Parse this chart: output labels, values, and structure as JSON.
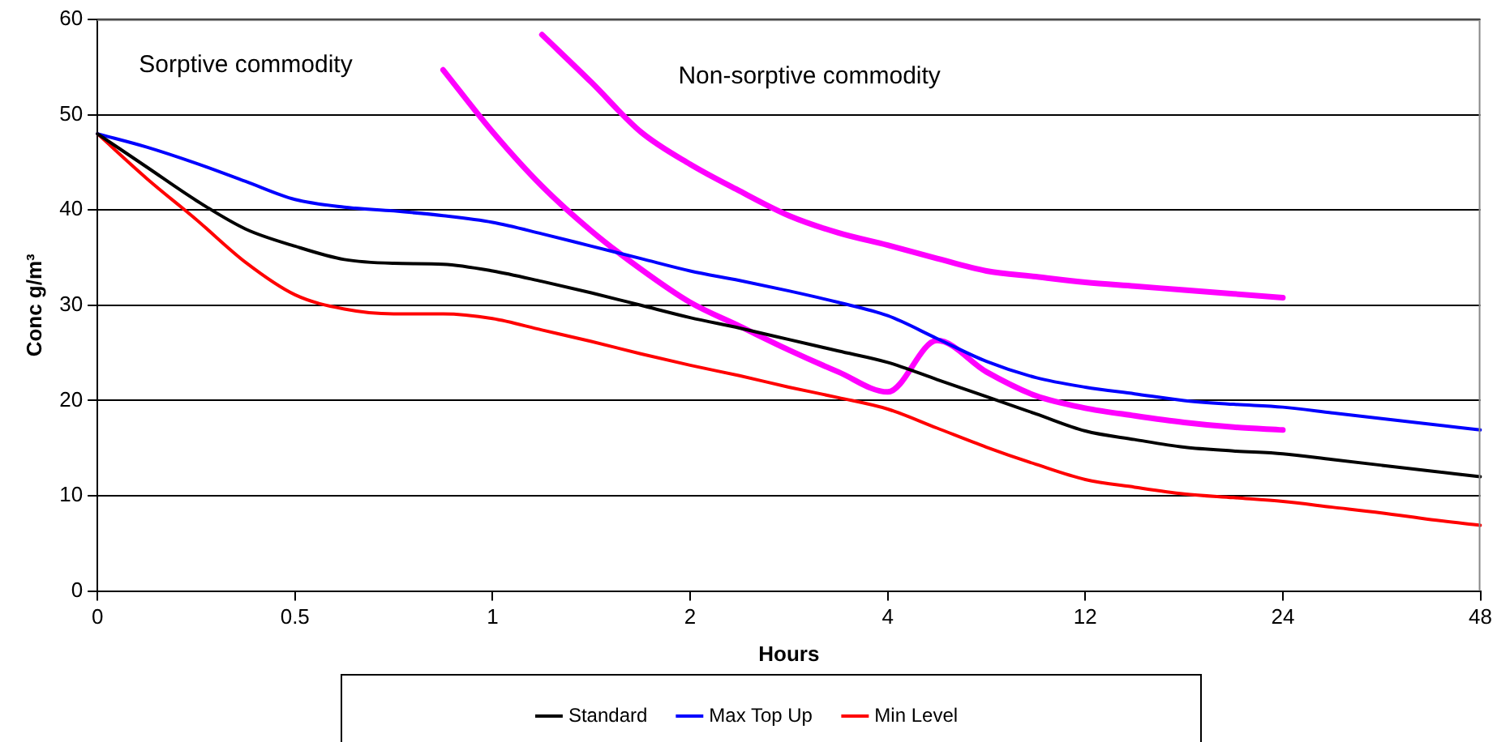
{
  "chart_data": {
    "type": "line",
    "xlabel": "Hours",
    "ylabel": "Conc g/m³",
    "categories": [
      "0",
      null,
      null,
      null,
      "0.5",
      null,
      null,
      null,
      "1",
      null,
      null,
      null,
      "2",
      null,
      null,
      null,
      "4",
      null,
      null,
      null,
      "12",
      null,
      null,
      null,
      "24",
      null,
      null,
      null,
      "48"
    ],
    "series": [
      {
        "name": "Standard",
        "color": "#000000",
        "values": [
          48,
          44.5,
          41,
          38,
          36.2,
          34.8,
          34.4,
          34.3,
          33.6,
          32.5,
          31.3,
          30,
          28.7,
          27.6,
          26.4,
          25.2,
          24,
          22.2,
          20.4,
          18.6,
          16.8,
          15.9,
          15.1,
          14.7,
          14.4,
          13.8,
          13.2,
          12.6,
          12
        ]
      },
      {
        "name": "Max Top Up",
        "color": "#0000ff",
        "values": [
          48,
          46.6,
          44.9,
          43,
          41.1,
          40.3,
          39.9,
          39.4,
          38.7,
          37.5,
          36.2,
          34.9,
          33.6,
          32.6,
          31.5,
          30.3,
          28.9,
          26.5,
          24.1,
          22.4,
          21.4,
          20.7,
          20,
          19.6,
          19.3,
          18.7,
          18.1,
          17.5,
          16.9
        ]
      },
      {
        "name": "Min Level",
        "color": "#ff0000",
        "values": [
          48,
          43.3,
          39,
          34.5,
          31.1,
          29.6,
          29.1,
          29.1,
          28.6,
          27.4,
          26.2,
          24.9,
          23.7,
          22.6,
          21.4,
          20.3,
          19.1,
          17.1,
          15.1,
          13.3,
          11.7,
          10.9,
          10.2,
          9.8,
          9.4,
          8.8,
          8.2,
          7.5,
          6.9
        ]
      },
      {
        "color": "#ff00ff",
        "values": [
          null,
          null,
          null,
          null,
          null,
          null,
          null,
          54.7,
          48.2,
          42.5,
          37.8,
          33.8,
          30.3,
          27.8,
          25.3,
          23,
          20.9,
          26.3,
          23,
          20.5,
          19.2,
          18.4,
          17.7,
          17.2,
          16.9,
          null,
          null,
          null,
          null
        ]
      },
      {
        "color": "#ff00ff",
        "values": [
          null,
          null,
          null,
          null,
          null,
          null,
          null,
          null,
          null,
          58.4,
          53.4,
          48.2,
          44.8,
          42,
          39.4,
          37.6,
          36.3,
          34.9,
          33.6,
          33,
          32.4,
          32,
          31.6,
          31.2,
          30.8,
          null,
          null,
          null,
          null
        ]
      }
    ],
    "ylim": [
      0,
      60
    ],
    "yticks": [
      0,
      10,
      20,
      30,
      40,
      50,
      60
    ],
    "grid": "y",
    "legend": "bottom",
    "marker": "none",
    "line_style": "solid",
    "annotations": [
      "Sorptive commodity",
      "Non-sorptive commodity"
    ]
  }
}
